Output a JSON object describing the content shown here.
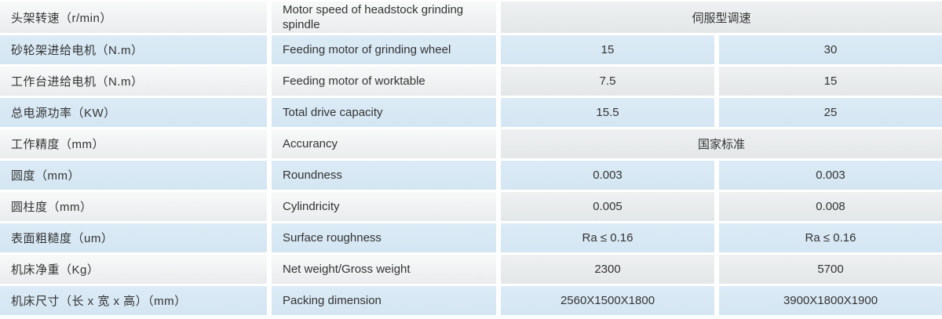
{
  "table": {
    "rows": [
      {
        "cn": "头架转速（r/min）",
        "en": "Motor speed of headstock grinding spindle",
        "merged": "伺服型调速"
      },
      {
        "cn": "砂轮架进给电机（N.m）",
        "en": "Feeding motor of grinding wheel",
        "values": [
          "15",
          "30"
        ]
      },
      {
        "cn": "工作台进给电机（N.m）",
        "en": "Feeding motor of worktable",
        "values": [
          "7.5",
          "15"
        ]
      },
      {
        "cn": "总电源功率（KW）",
        "en": "Total drive capacity",
        "values": [
          "15.5",
          "25"
        ]
      },
      {
        "cn": "工作精度（mm）",
        "en": "Accurancy",
        "merged": "国家标准"
      },
      {
        "cn": "圆度（mm）",
        "en": "Roundness",
        "values": [
          "0.003",
          "0.003"
        ]
      },
      {
        "cn": "圆柱度（mm）",
        "en": "Cylindricity",
        "values": [
          "0.005",
          "0.008"
        ]
      },
      {
        "cn": "表面粗糙度（um）",
        "en": "Surface roughness",
        "values": [
          "Ra ≤ 0.16",
          "Ra ≤ 0.16"
        ]
      },
      {
        "cn": "机床净重（Kg）",
        "en": "Net weight/Gross weight",
        "values": [
          "2300",
          "5700"
        ]
      },
      {
        "cn": "机床尺寸（长 x 宽 x 高）（mm）",
        "en": "Packing dimension",
        "values": [
          "2560X1500X1800",
          "3900X1800X1900"
        ]
      }
    ],
    "colors": {
      "row_blue": "#d8e8f4",
      "row_grey": "#e7e9ea",
      "row_light": "#f5f6f6",
      "grid_line": "#ffffff",
      "text": "#333333"
    }
  }
}
